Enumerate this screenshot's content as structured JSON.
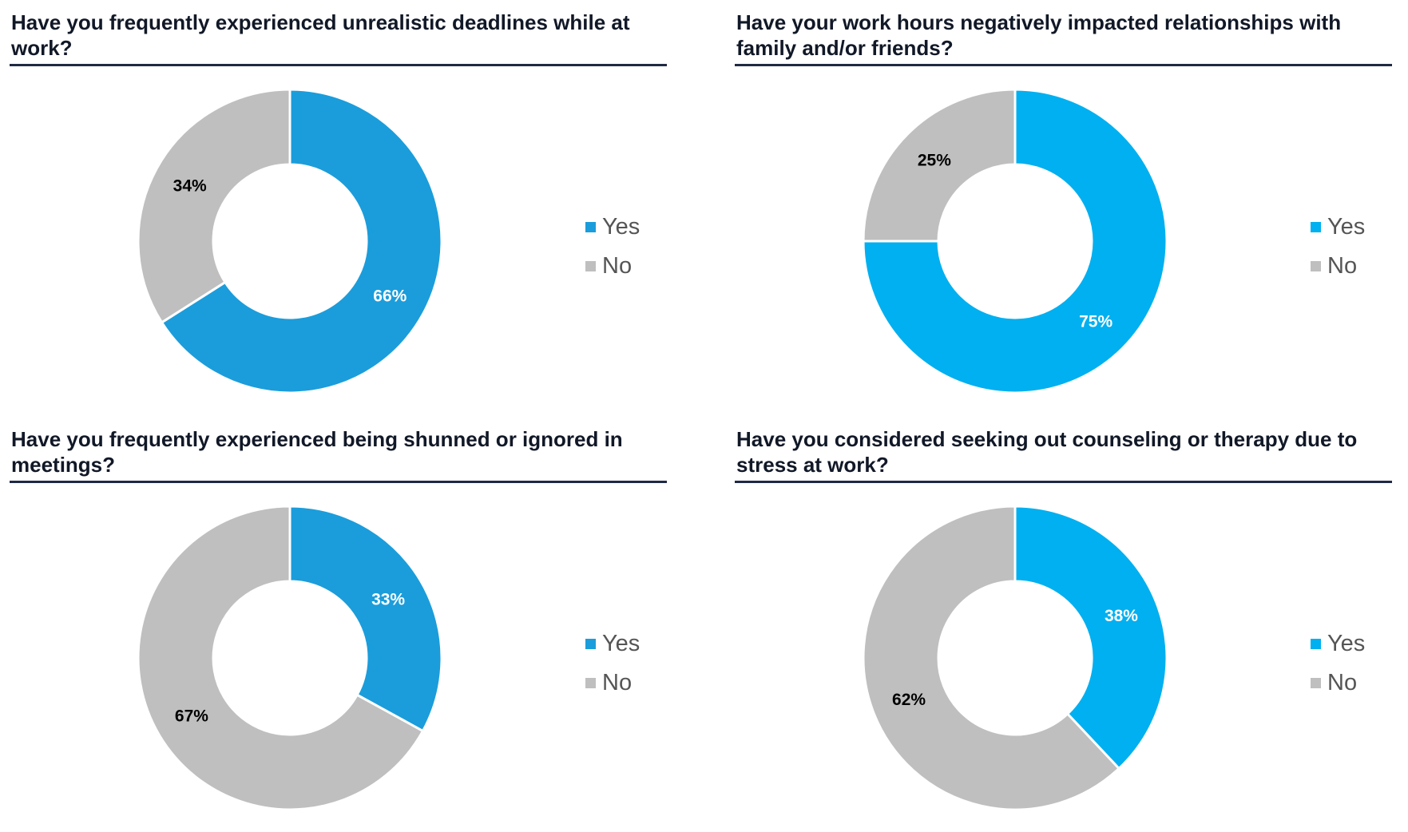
{
  "colors": {
    "yes_dark": "#1B9DDB",
    "yes_bright": "#00B0F0",
    "no": "#BFBFBF",
    "rule": "#1F2A44",
    "title": "#111827",
    "legend_text": "#555555",
    "label_on_yes": "#FFFFFF",
    "label_on_no": "#000000"
  },
  "chart_data": [
    {
      "type": "pie",
      "title": "Have you frequently experienced unrealistic deadlines while at work?",
      "categories": [
        "Yes",
        "No"
      ],
      "values": [
        66,
        34
      ],
      "labels": [
        "66%",
        "34%"
      ],
      "yes_color": "#1B9DDB",
      "legend": [
        {
          "name": "Yes",
          "icon": "square-swatch-icon"
        },
        {
          "name": "No",
          "icon": "square-swatch-icon"
        }
      ],
      "legend_position": "right"
    },
    {
      "type": "pie",
      "title": "Have your work hours negatively impacted relationships with family and/or friends?",
      "categories": [
        "Yes",
        "No"
      ],
      "values": [
        75,
        25
      ],
      "labels": [
        "75%",
        "25%"
      ],
      "yes_color": "#00B0F0",
      "legend": [
        {
          "name": "Yes",
          "icon": "square-swatch-icon"
        },
        {
          "name": "No",
          "icon": "square-swatch-icon"
        }
      ],
      "legend_position": "right"
    },
    {
      "type": "pie",
      "title": "Have you frequently experienced being shunned or ignored in meetings?",
      "categories": [
        "Yes",
        "No"
      ],
      "values": [
        33,
        67
      ],
      "labels": [
        "33%",
        "67%"
      ],
      "yes_color": "#1B9DDB",
      "legend": [
        {
          "name": "Yes",
          "icon": "square-swatch-icon"
        },
        {
          "name": "No",
          "icon": "square-swatch-icon"
        }
      ],
      "legend_position": "right"
    },
    {
      "type": "pie",
      "title": "Have you considered seeking out counseling or therapy due to stress at work?",
      "categories": [
        "Yes",
        "No"
      ],
      "values": [
        38,
        62
      ],
      "labels": [
        "38%",
        "62%"
      ],
      "yes_color": "#00B0F0",
      "legend": [
        {
          "name": "Yes",
          "icon": "square-swatch-icon"
        },
        {
          "name": "No",
          "icon": "square-swatch-icon"
        }
      ],
      "legend_position": "right"
    }
  ]
}
